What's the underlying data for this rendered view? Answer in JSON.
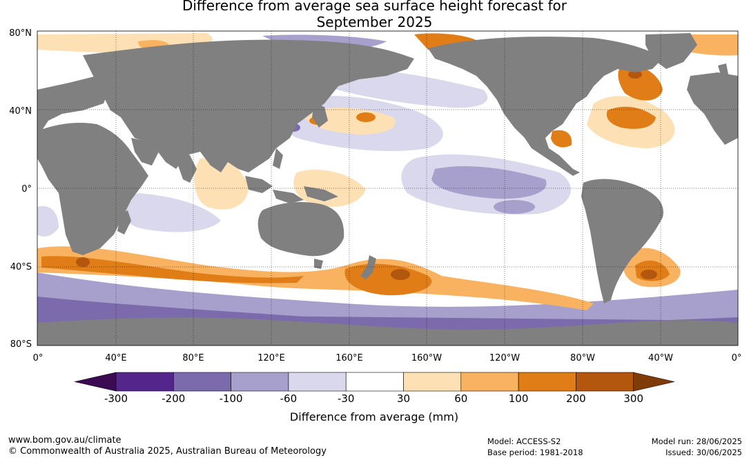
{
  "title": {
    "line1": "Difference from average sea surface height forecast for",
    "line2": "September 2025"
  },
  "map": {
    "latitude_labels": [
      "80°N",
      "40°N",
      "0°",
      "40°S",
      "80°S"
    ],
    "longitude_labels": [
      "0°",
      "40°E",
      "80°E",
      "120°E",
      "160°E",
      "160°W",
      "120°W",
      "80°W",
      "40°W",
      "0°"
    ],
    "land_color": "#808080"
  },
  "legend": {
    "title": "Difference from average (mm)",
    "tick_labels": [
      "-300",
      "-200",
      "-100",
      "-60",
      "-30",
      "30",
      "60",
      "100",
      "200",
      "300"
    ],
    "colors": [
      "#3b0a52",
      "#54258a",
      "#7b6aac",
      "#a7a0cc",
      "#d9d8ec",
      "#ffffff",
      "#fde0b4",
      "#f9b25f",
      "#e07d17",
      "#b3570e",
      "#7f3b08"
    ]
  },
  "footer": {
    "url": "www.bom.gov.au/climate",
    "copyright": "© Commonwealth of Australia 2025, Australian Bureau of Meteorology",
    "model": "Model: ACCESS-S2",
    "base_period": "Base period: 1981-2018",
    "model_run": "Model run: 28/06/2025",
    "issued": "Issued: 30/06/2025"
  }
}
